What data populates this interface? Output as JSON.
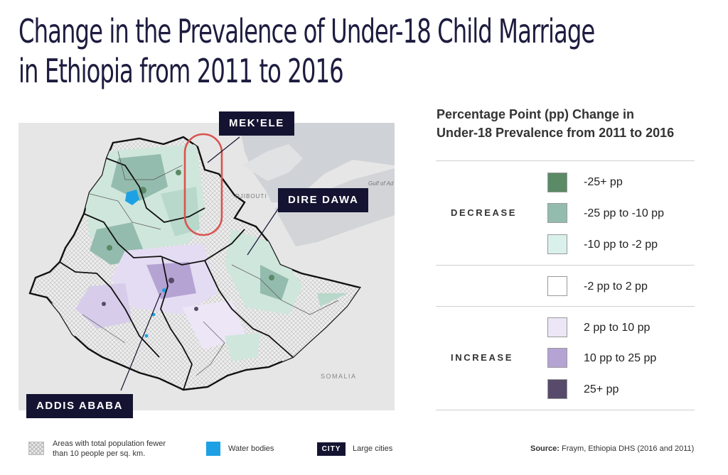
{
  "title": {
    "line1": "Change in the Prevalence of Under-18 Child Marriage",
    "line2": "in Ethiopia from 2011 to 2016"
  },
  "map": {
    "cities": {
      "mekele": "MEK’ELE",
      "dire_dawa": "DIRE DAWA",
      "addis_ababa": "ADDIS ABABA"
    },
    "place_labels": {
      "djibouti": "DJIBOUTI",
      "gulf": "Gulf of Ad",
      "somalia": "SOMALIA"
    },
    "highlight_color": "#d9534f"
  },
  "legend": {
    "title_line1": "Percentage Point (pp) Change in",
    "title_line2": "Under-18 Prevalence from 2011 to 2016",
    "decrease_label": "DECREASE",
    "increase_label": "INCREASE",
    "items": [
      {
        "label": "-25+ pp",
        "color": "#5a8a66"
      },
      {
        "label": "-25 pp to -10 pp",
        "color": "#94bcae"
      },
      {
        "label": "-10 pp to -2 pp",
        "color": "#daf0eb"
      },
      {
        "label": "-2 pp to 2 pp",
        "color": "#ffffff"
      },
      {
        "label": "2 pp to 10 pp",
        "color": "#ece6f6"
      },
      {
        "label": "10 pp to 25 pp",
        "color": "#b5a3d4"
      },
      {
        "label": "25+ pp",
        "color": "#574a6b"
      }
    ]
  },
  "footer": {
    "sparse_line1": "Areas with total population fewer",
    "sparse_line2": "than 10 people per sq. km.",
    "water": "Water bodies",
    "water_color": "#1da1e4",
    "city_chip": "CITY",
    "city_label": "Large cities",
    "source_label": "Source:",
    "source_text": " Fraym, Ethiopia DHS (2016 and 2011)"
  }
}
